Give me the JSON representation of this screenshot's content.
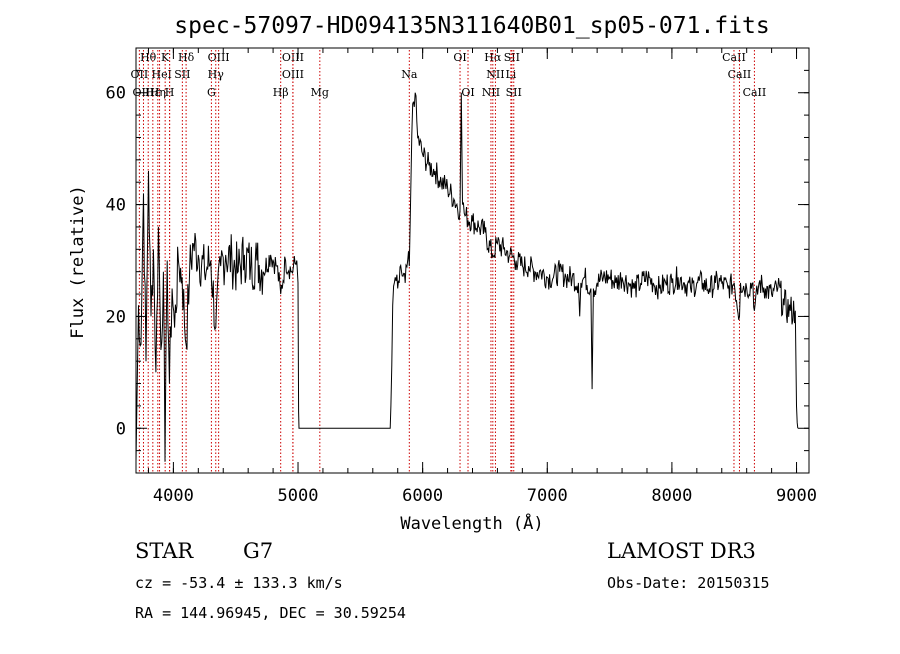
{
  "chart_data": {
    "type": "line",
    "title": "spec-57097-HD094135N311640B01_sp05-071.fits",
    "xlabel": "Wavelength (Å)",
    "ylabel": "Flux (relative)",
    "xlim": [
      3700,
      9100
    ],
    "ylim": [
      -8,
      68
    ],
    "x_ticks": [
      4000,
      5000,
      6000,
      7000,
      8000,
      9000
    ],
    "y_ticks": [
      0,
      20,
      40,
      60
    ],
    "grid": false,
    "series": [
      {
        "name": "flux",
        "x": [
          3700,
          3720,
          3740,
          3760,
          3780,
          3800,
          3820,
          3840,
          3860,
          3880,
          3900,
          3920,
          3933,
          3950,
          3968,
          3990,
          4010,
          4040,
          4070,
          4102,
          4130,
          4160,
          4200,
          4250,
          4300,
          4340,
          4380,
          4420,
          4470,
          4520,
          4570,
          4620,
          4670,
          4720,
          4780,
          4830,
          4861,
          4900,
          4950,
          4990,
          5000,
          5005,
          5008,
          5100,
          5400,
          5700,
          5740,
          5745,
          5760,
          5780,
          5800,
          5830,
          5860,
          5880,
          5893,
          5900,
          5920,
          5940,
          5960,
          6000,
          6050,
          6100,
          6150,
          6200,
          6250,
          6300,
          6310,
          6320,
          6340,
          6400,
          6450,
          6500,
          6560,
          6600,
          6650,
          6700,
          6750,
          6800,
          6850,
          6900,
          6950,
          7000,
          7050,
          7100,
          7150,
          7200,
          7250,
          7260,
          7270,
          7300,
          7350,
          7360,
          7370,
          7400,
          7450,
          7500,
          7550,
          7600,
          7650,
          7700,
          7750,
          7800,
          7850,
          7900,
          7950,
          8000,
          8050,
          8100,
          8150,
          8200,
          8250,
          8300,
          8350,
          8400,
          8450,
          8500,
          8542,
          8550,
          8600,
          8650,
          8662,
          8700,
          8750,
          8800,
          8850,
          8900,
          8950,
          8990,
          9000,
          9005,
          9010
        ],
        "y": [
          -6,
          22,
          15,
          42,
          12,
          46,
          20,
          32,
          10,
          36,
          14,
          28,
          -6,
          30,
          8,
          25,
          18,
          30,
          27,
          15,
          28,
          33,
          31,
          28,
          30,
          18,
          29,
          31,
          30,
          28,
          31,
          29,
          30,
          28,
          31,
          29,
          24,
          30,
          28,
          30,
          26,
          3,
          0,
          0,
          0,
          0,
          0,
          4,
          22,
          27,
          25,
          28,
          26,
          30,
          29,
          37,
          58,
          60,
          52,
          49,
          47,
          46,
          44,
          43,
          41,
          39,
          60,
          40,
          38,
          37,
          36,
          35,
          31,
          33,
          32,
          31,
          30,
          29,
          29,
          28,
          28,
          27,
          27,
          28,
          27,
          27,
          26,
          20,
          26,
          27,
          25,
          7,
          25,
          26,
          27,
          27,
          26,
          27,
          26,
          25,
          26,
          27,
          26,
          25,
          26,
          26,
          27,
          26,
          25,
          26,
          26,
          25,
          26,
          26,
          25,
          26,
          20,
          26,
          25,
          26,
          21,
          26,
          25,
          24,
          25,
          22,
          21,
          21,
          4,
          1,
          0
        ]
      }
    ],
    "line_markers": [
      {
        "label": "Hθ",
        "x": 3798,
        "row": 1
      },
      {
        "label": "K",
        "x": 3934,
        "row": 1
      },
      {
        "label": "Hδ",
        "x": 4102,
        "row": 1
      },
      {
        "label": "OIII",
        "x": 4363,
        "row": 1
      },
      {
        "label": "OIII",
        "x": 4959,
        "row": 1
      },
      {
        "label": "OI",
        "x": 6300,
        "row": 1
      },
      {
        "label": "Hα",
        "x": 6563,
        "row": 1
      },
      {
        "label": "SII",
        "x": 6716,
        "row": 1
      },
      {
        "label": "CaII",
        "x": 8498,
        "row": 1
      },
      {
        "label": "OII",
        "x": 3727,
        "row": 2
      },
      {
        "label": "He",
        "x": 3889,
        "row": 2
      },
      {
        "label": "I",
        "x": 3970,
        "row": 2
      },
      {
        "label": "SII",
        "x": 4072,
        "row": 2
      },
      {
        "label": "Hγ",
        "x": 4340,
        "row": 2
      },
      {
        "label": "OIII",
        "x": 4959,
        "row": 2
      },
      {
        "label": "Na",
        "x": 5893,
        "row": 2
      },
      {
        "label": "NII",
        "x": 6584,
        "row": 2
      },
      {
        "label": "Li",
        "x": 6708,
        "row": 2
      },
      {
        "label": "CaII",
        "x": 8542,
        "row": 2
      },
      {
        "label": "OIII",
        "x": 3760,
        "row": 3
      },
      {
        "label": "Hε",
        "x": 3835,
        "row": 3
      },
      {
        "label": "Hη",
        "x": 3875,
        "row": 3
      },
      {
        "label": "H",
        "x": 3969,
        "row": 3
      },
      {
        "label": "G",
        "x": 4305,
        "row": 3
      },
      {
        "label": "Hβ",
        "x": 4861,
        "row": 3
      },
      {
        "label": "Mg",
        "x": 5175,
        "row": 3
      },
      {
        "label": "OI",
        "x": 6364,
        "row": 3
      },
      {
        "label": "NII",
        "x": 6548,
        "row": 3
      },
      {
        "label": "SII",
        "x": 6731,
        "row": 3
      },
      {
        "label": "CaII",
        "x": 8662,
        "row": 3
      }
    ],
    "marker_line_color": "#cc0000"
  },
  "info": {
    "object_class": "STAR",
    "subclass": "G7",
    "survey": "LAMOST DR3",
    "redshift": "cz = -53.4 ± 133.3 km/s",
    "obs_date": "Obs-Date: 20150315",
    "coords": "RA = 144.96945, DEC =  30.59254"
  }
}
